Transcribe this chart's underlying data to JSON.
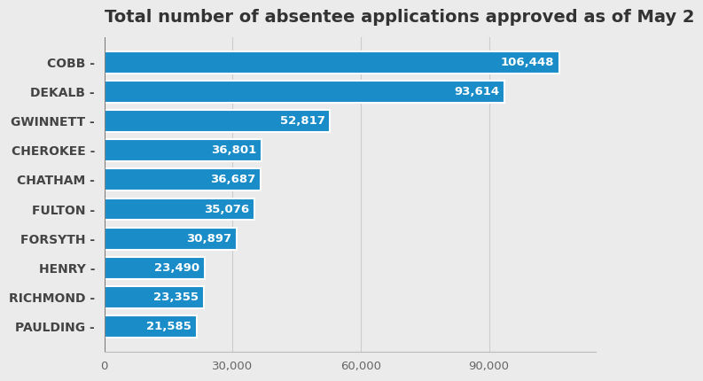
{
  "title": "Total number of absentee applications approved as of May 2",
  "counties": [
    "COBB",
    "DEKALB",
    "GWINNETT",
    "CHEROKEE",
    "CHATHAM",
    "FULTON",
    "FORSYTH",
    "HENRY",
    "RICHMOND",
    "PAULDING"
  ],
  "values": [
    106448,
    93614,
    52817,
    36801,
    36687,
    35076,
    30897,
    23490,
    23355,
    21585
  ],
  "bar_color": "#1a8dc8",
  "label_color": "#ffffff",
  "title_color": "#333333",
  "ylabel_color": "#444444",
  "background_color": "#ebebeb",
  "axes_background_color": "#ebebeb",
  "xlim": [
    0,
    115000
  ],
  "xticks": [
    0,
    30000,
    60000,
    90000
  ],
  "xtick_labels": [
    "0",
    "30,000",
    "60,000",
    "90,000"
  ],
  "title_fontsize": 14,
  "label_fontsize": 9.5,
  "tick_fontsize": 9.5,
  "county_fontsize": 10
}
